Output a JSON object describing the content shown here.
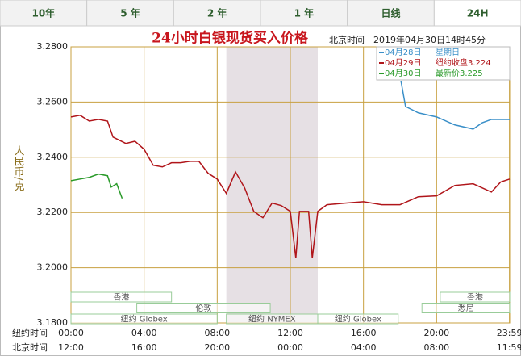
{
  "tabs": [
    "10年",
    "5 年",
    "2 年",
    "1 年",
    "日线",
    "24H"
  ],
  "chart_data": {
    "type": "line",
    "title": "24小时白银现货买入价格",
    "timestamp": "北京时间　2019年04月30日14时45分",
    "y_label": "人民币/克",
    "row_labels": [
      "纽约时间",
      "北京时间"
    ],
    "xlim": [
      0,
      24
    ],
    "xticks": [
      {
        "value": 0,
        "label": "00:00"
      },
      {
        "value": 4,
        "label": "04:00"
      },
      {
        "value": 8,
        "label": "08:00"
      },
      {
        "value": 12,
        "label": "12:00"
      },
      {
        "value": 16,
        "label": "16:00"
      },
      {
        "value": 20,
        "label": "20:00"
      },
      {
        "value": 23.9833,
        "label": "23:59"
      }
    ],
    "beijing_ticks": [
      "12:00",
      "16:00",
      "20:00",
      "00:00",
      "04:00",
      "08:00",
      "11:59"
    ],
    "ylim": [
      3.18,
      3.28
    ],
    "yticks": [
      {
        "value": 3.28,
        "label": "3.2800"
      },
      {
        "value": 3.26,
        "label": "3.2600"
      },
      {
        "value": 3.24,
        "label": "3.2400"
      },
      {
        "value": 3.22,
        "label": "3.2200"
      },
      {
        "value": 3.2,
        "label": "3.2000"
      },
      {
        "value": 3.18,
        "label": "3.1800"
      }
    ],
    "grid": true,
    "shade_range": [
      8.5,
      13.5
    ],
    "series": [
      {
        "name": "04月28日",
        "note": "星期日",
        "color": "#3a8fc8",
        "x": [
          18.05,
          18.3,
          19,
          20,
          21,
          22,
          22.5,
          23,
          24
        ],
        "values": [
          3.2677,
          3.2584,
          3.2561,
          3.2546,
          3.2517,
          3.2502,
          3.2525,
          3.2537,
          3.2537
        ]
      },
      {
        "name": "04月29日",
        "note": "纽约收盘3.224",
        "color": "#b0151a",
        "x": [
          0,
          0.5,
          1,
          1.5,
          2,
          2.3,
          3,
          3.5,
          4,
          4.5,
          5,
          5.5,
          6,
          6.5,
          7,
          7.5,
          8,
          8.5,
          9,
          9.5,
          10,
          10.5,
          11,
          11.5,
          12,
          12.3,
          12.5,
          13,
          13.2,
          13.5,
          14,
          15,
          16,
          17,
          18,
          19,
          20,
          21,
          22,
          23,
          23.5,
          24
        ],
        "values": [
          3.2546,
          3.2552,
          3.2531,
          3.2537,
          3.2531,
          3.2473,
          3.245,
          3.2458,
          3.2429,
          3.2371,
          3.2365,
          3.238,
          3.238,
          3.2385,
          3.2385,
          3.2342,
          3.2321,
          3.2269,
          3.2347,
          3.2289,
          3.2204,
          3.2181,
          3.2234,
          3.2225,
          3.2204,
          3.2035,
          3.2204,
          3.2204,
          3.2035,
          3.2204,
          3.2228,
          3.2234,
          3.2239,
          3.2228,
          3.2228,
          3.2257,
          3.226,
          3.2298,
          3.2304,
          3.2274,
          3.231,
          3.2321
        ]
      },
      {
        "name": "04月30日",
        "note": "最新价3.225",
        "color": "#2a9a2a",
        "x": [
          0,
          0.5,
          1,
          1.5,
          2,
          2.2,
          2.5,
          2.8
        ],
        "values": [
          3.2315,
          3.2321,
          3.2327,
          3.2339,
          3.2333,
          3.2292,
          3.2304,
          3.2251
        ]
      }
    ],
    "sessions": [
      {
        "name": "香港",
        "row": 0,
        "start": 0,
        "end": 5.5
      },
      {
        "name": "香港",
        "row": 0,
        "start": 20.2,
        "end": 24
      },
      {
        "name": "伦敦",
        "row": 1,
        "start": 3.6,
        "end": 10.9
      },
      {
        "name": "悉尼",
        "row": 1,
        "start": 19.2,
        "end": 24
      },
      {
        "name": "纽约 Globex",
        "row": 2,
        "start": 0,
        "end": 8
      },
      {
        "name": "纽约 NYMEX",
        "row": 2,
        "start": 8.5,
        "end": 13.5
      },
      {
        "name": "纽约 Globex",
        "row": 2,
        "start": 13.5,
        "end": 17.9
      }
    ]
  }
}
